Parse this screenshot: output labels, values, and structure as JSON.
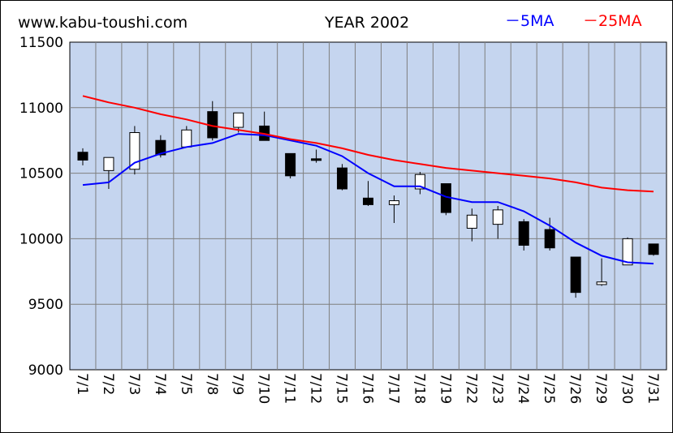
{
  "header": {
    "site": "www.kabu-toushi.com",
    "title": "YEAR 2002",
    "legend_ma5": "－5MA",
    "legend_ma25": "－25MA"
  },
  "colors": {
    "plot_bg": "#c5d5ef",
    "grid": "#7f7f7f",
    "ma5": "#0000ff",
    "ma25": "#ff0000",
    "up_candle": "#ffffff",
    "down_candle": "#000000"
  },
  "chart_data": {
    "type": "candlestick",
    "categories": [
      "7/1",
      "7/2",
      "7/3",
      "7/4",
      "7/5",
      "7/8",
      "7/9",
      "7/10",
      "7/11",
      "7/12",
      "7/15",
      "7/16",
      "7/17",
      "7/18",
      "7/19",
      "7/22",
      "7/23",
      "7/24",
      "7/25",
      "7/26",
      "7/29",
      "7/30",
      "7/31"
    ],
    "ylim": [
      9000,
      11500
    ],
    "yticks": [
      9000,
      9500,
      10000,
      10500,
      11000,
      11500
    ],
    "ytick_labels": [
      "9000",
      "9500",
      "10000",
      "10500",
      "11000",
      "11500"
    ],
    "grid": true,
    "ohlc": [
      {
        "open": 10660,
        "high": 10690,
        "low": 10560,
        "close": 10600
      },
      {
        "open": 10520,
        "high": 10620,
        "low": 10380,
        "close": 10620
      },
      {
        "open": 10530,
        "high": 10860,
        "low": 10490,
        "close": 10810
      },
      {
        "open": 10750,
        "high": 10790,
        "low": 10620,
        "close": 10640
      },
      {
        "open": 10700,
        "high": 10860,
        "low": 10700,
        "close": 10830
      },
      {
        "open": 10970,
        "high": 11050,
        "low": 10750,
        "close": 10770
      },
      {
        "open": 10850,
        "high": 10960,
        "low": 10810,
        "close": 10960
      },
      {
        "open": 10860,
        "high": 10970,
        "low": 10750,
        "close": 10750
      },
      {
        "open": 10650,
        "high": 10650,
        "low": 10460,
        "close": 10480
      },
      {
        "open": 10610,
        "high": 10680,
        "low": 10580,
        "close": 10600
      },
      {
        "open": 10540,
        "high": 10570,
        "low": 10370,
        "close": 10380
      },
      {
        "open": 10310,
        "high": 10440,
        "low": 10250,
        "close": 10260
      },
      {
        "open": 10260,
        "high": 10330,
        "low": 10120,
        "close": 10290
      },
      {
        "open": 10380,
        "high": 10510,
        "low": 10340,
        "close": 10490
      },
      {
        "open": 10420,
        "high": 10420,
        "low": 10180,
        "close": 10200
      },
      {
        "open": 10080,
        "high": 10230,
        "low": 9980,
        "close": 10180
      },
      {
        "open": 10110,
        "high": 10250,
        "low": 10000,
        "close": 10220
      },
      {
        "open": 10130,
        "high": 10150,
        "low": 9910,
        "close": 9950
      },
      {
        "open": 10070,
        "high": 10160,
        "low": 9910,
        "close": 9930
      },
      {
        "open": 9860,
        "high": 9860,
        "low": 9550,
        "close": 9590
      },
      {
        "open": 9650,
        "high": 9850,
        "low": 9640,
        "close": 9670
      },
      {
        "open": 9800,
        "high": 10010,
        "low": 9800,
        "close": 10000
      },
      {
        "open": 9960,
        "high": 9960,
        "low": 9870,
        "close": 9880
      }
    ],
    "series": [
      {
        "name": "5MA",
        "values": [
          10410,
          10430,
          10580,
          10650,
          10700,
          10730,
          10800,
          10790,
          10750,
          10710,
          10630,
          10500,
          10400,
          10400,
          10320,
          10280,
          10280,
          10210,
          10100,
          9970,
          9870,
          9820,
          9810
        ]
      },
      {
        "name": "25MA",
        "values": [
          11090,
          11040,
          11000,
          10950,
          10910,
          10860,
          10830,
          10800,
          10760,
          10730,
          10690,
          10640,
          10600,
          10570,
          10540,
          10520,
          10500,
          10480,
          10460,
          10430,
          10390,
          10370,
          10360
        ]
      }
    ]
  }
}
